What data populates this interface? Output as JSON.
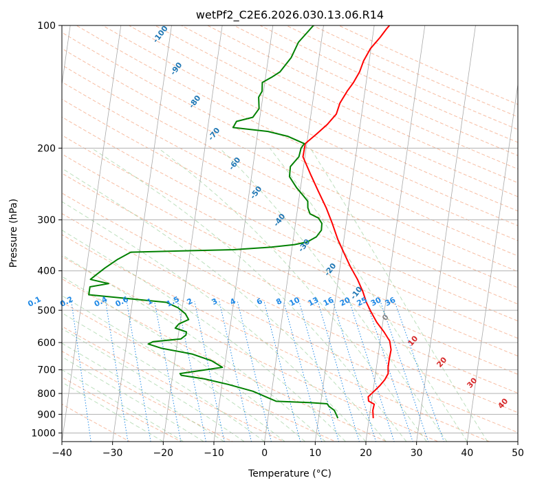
{
  "chart_data": {
    "type": "line",
    "title": "wetPf2_C2E6.2026.030.13.06.R14",
    "xlabel": "Temperature (°C)",
    "ylabel": "Pressure (hPa)",
    "xlim": [
      -40,
      50
    ],
    "ylim": [
      1050,
      100
    ],
    "x_ticks": [
      -40,
      -30,
      -20,
      -10,
      0,
      10,
      20,
      30,
      40,
      50
    ],
    "x_tick_labels": [
      "−40",
      "−30",
      "−20",
      "−10",
      "0",
      "10",
      "20",
      "30",
      "40",
      "50"
    ],
    "y_ticks": [
      1000,
      900,
      800,
      700,
      600,
      500,
      400,
      300,
      200,
      100
    ],
    "y_tick_labels": [
      "1000",
      "900",
      "800",
      "700",
      "600",
      "500",
      "400",
      "300",
      "200",
      "100"
    ],
    "grid": true,
    "series": [
      {
        "name": "Temperature",
        "color": "#ff0000",
        "points": [
          [
            20.8,
            920
          ],
          [
            20.5,
            880
          ],
          [
            20.6,
            850
          ],
          [
            19.4,
            835
          ],
          [
            19.2,
            815
          ],
          [
            20.2,
            790
          ],
          [
            21.2,
            765
          ],
          [
            22.0,
            740
          ],
          [
            22.5,
            715
          ],
          [
            22.3,
            690
          ],
          [
            22.3,
            660
          ],
          [
            22.4,
            625
          ],
          [
            21.9,
            595
          ],
          [
            20.5,
            565
          ],
          [
            18.8,
            535
          ],
          [
            17.4,
            505
          ],
          [
            16.2,
            478
          ],
          [
            15.2,
            450
          ],
          [
            13.8,
            420
          ],
          [
            12.0,
            390
          ],
          [
            10.3,
            360
          ],
          [
            8.8,
            335
          ],
          [
            7.2,
            305
          ],
          [
            5.6,
            280
          ],
          [
            3.6,
            255
          ],
          [
            1.6,
            232
          ],
          [
            -0.4,
            210
          ],
          [
            -0.3,
            195
          ],
          [
            1.6,
            185
          ],
          [
            3.5,
            175
          ],
          [
            5.0,
            165
          ],
          [
            5.4,
            155
          ],
          [
            6.5,
            145
          ],
          [
            7.5,
            138
          ],
          [
            8.4,
            130
          ],
          [
            8.9,
            122
          ],
          [
            9.9,
            114
          ],
          [
            11.5,
            107
          ],
          [
            12.5,
            102
          ],
          [
            13.0,
            100
          ]
        ]
      },
      {
        "name": "Dewpoint",
        "color": "#008000",
        "points": [
          [
            13.8,
            920
          ],
          [
            13.5,
            905
          ],
          [
            12.9,
            880
          ],
          [
            11.7,
            860
          ],
          [
            11.3,
            848
          ],
          [
            7.7,
            842
          ],
          [
            1.2,
            836
          ],
          [
            -0.7,
            818
          ],
          [
            -3.7,
            790
          ],
          [
            -8.8,
            760
          ],
          [
            -13.6,
            737
          ],
          [
            -18.3,
            722
          ],
          [
            -18.6,
            715
          ],
          [
            -10.4,
            690
          ],
          [
            -12.7,
            665
          ],
          [
            -16.8,
            640
          ],
          [
            -22.9,
            620
          ],
          [
            -25.7,
            605
          ],
          [
            -24.8,
            597
          ],
          [
            -19.4,
            588
          ],
          [
            -18.5,
            575
          ],
          [
            -18.5,
            565
          ],
          [
            -20.8,
            553
          ],
          [
            -20.2,
            540
          ],
          [
            -18.4,
            527
          ],
          [
            -19.2,
            510
          ],
          [
            -20.8,
            493
          ],
          [
            -23.3,
            478
          ],
          [
            -38.8,
            458
          ],
          [
            -38.8,
            448
          ],
          [
            -38.8,
            438
          ],
          [
            -35.2,
            430
          ],
          [
            -38.9,
            420
          ],
          [
            -37.8,
            408
          ],
          [
            -36.4,
            394
          ],
          [
            -34.1,
            375
          ],
          [
            -31.7,
            360
          ],
          [
            -11.5,
            355
          ],
          [
            -4.1,
            350
          ],
          [
            0.4,
            345
          ],
          [
            2.8,
            340
          ],
          [
            4.5,
            330
          ],
          [
            5.3,
            318
          ],
          [
            5.2,
            306
          ],
          [
            4.4,
            297
          ],
          [
            2.6,
            290
          ],
          [
            2.0,
            280
          ],
          [
            1.8,
            270
          ],
          [
            0.8,
            262
          ],
          [
            -0.8,
            250
          ],
          [
            -2.5,
            235
          ],
          [
            -2.6,
            222
          ],
          [
            -1.2,
            210
          ],
          [
            -1.0,
            200
          ],
          [
            -0.5,
            195
          ],
          [
            -4.0,
            187
          ],
          [
            -8.0,
            182
          ],
          [
            -15.0,
            178
          ],
          [
            -14.5,
            172
          ],
          [
            -11.4,
            168
          ],
          [
            -10.4,
            160
          ],
          [
            -10.8,
            150
          ],
          [
            -10.3,
            145
          ],
          [
            -10.5,
            138
          ],
          [
            -8.8,
            134
          ],
          [
            -7.3,
            130
          ],
          [
            -5.5,
            120
          ],
          [
            -4.5,
            110
          ],
          [
            -2.0,
            100
          ]
        ]
      }
    ],
    "dry_adiabat_labels": [
      {
        "text": "-100"
      },
      {
        "text": "-90"
      },
      {
        "text": "-80"
      },
      {
        "text": "-70"
      },
      {
        "text": "-60"
      },
      {
        "text": "-50"
      },
      {
        "text": "-40"
      },
      {
        "text": "-30"
      },
      {
        "text": "-20"
      },
      {
        "text": "-10"
      }
    ],
    "mixing_ratio_labels": [
      {
        "text": "0.1",
        "w": 0.1
      },
      {
        "text": "0.2",
        "w": 0.2
      },
      {
        "text": "0.4",
        "w": 0.4
      },
      {
        "text": "0.6",
        "w": 0.6
      },
      {
        "text": "1",
        "w": 1
      },
      {
        "text": "1.5",
        "w": 1.5
      },
      {
        "text": "2",
        "w": 2
      },
      {
        "text": "3",
        "w": 3
      },
      {
        "text": "4",
        "w": 4
      },
      {
        "text": "6",
        "w": 6
      },
      {
        "text": "8",
        "w": 8
      },
      {
        "text": "10",
        "w": 10
      },
      {
        "text": "13",
        "w": 13
      },
      {
        "text": "16",
        "w": 16
      },
      {
        "text": "20",
        "w": 20
      },
      {
        "text": "25",
        "w": 25
      },
      {
        "text": "30",
        "w": 30
      },
      {
        "text": "36",
        "w": 36
      }
    ],
    "moist_adiabat_labels": [
      {
        "text": "0"
      },
      {
        "text": "10"
      },
      {
        "text": "20"
      },
      {
        "text": "30"
      },
      {
        "text": "40"
      }
    ],
    "colors": {
      "grid": "#b0b0b0",
      "isotherm": "#999999",
      "dry_adiabat": "#f4a582",
      "moist_adiabat": "#8fc98f",
      "mixing_ratio": "#1e88e5",
      "label_dry": "#1f77b4",
      "label_mixing": "#1e88e5",
      "label_moist": "#d62728",
      "label_zero": "#888888"
    }
  }
}
